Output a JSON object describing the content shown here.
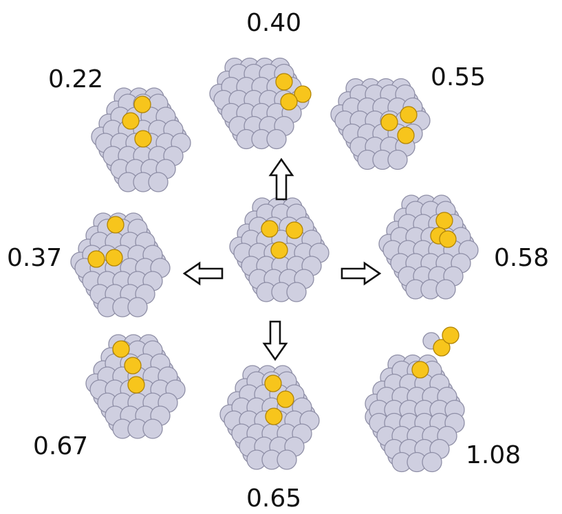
{
  "colors": {
    "atom_fill": "#cfcfe0",
    "atom_stroke": "#8e8ea6",
    "adsorbate_fill": "#f7c51c",
    "adsorbate_stroke": "#b08407",
    "arrow_stroke": "#111111",
    "arrow_fill": "#ffffff",
    "text": "#111111"
  },
  "clusters": [
    {
      "id": "center",
      "label": ""
    },
    {
      "id": "top",
      "label": "0.40"
    },
    {
      "id": "top-left",
      "label": "0.22"
    },
    {
      "id": "top-right",
      "label": "0.55"
    },
    {
      "id": "left",
      "label": "0.37"
    },
    {
      "id": "right",
      "label": "0.58"
    },
    {
      "id": "bottom-left",
      "label": "0.67"
    },
    {
      "id": "bottom",
      "label": "0.65"
    },
    {
      "id": "bottom-right",
      "label": "1.08"
    }
  ],
  "arrows": [
    {
      "id": "up",
      "direction": "up"
    },
    {
      "id": "left",
      "direction": "left"
    },
    {
      "id": "right",
      "direction": "right"
    },
    {
      "id": "down",
      "direction": "down"
    }
  ]
}
